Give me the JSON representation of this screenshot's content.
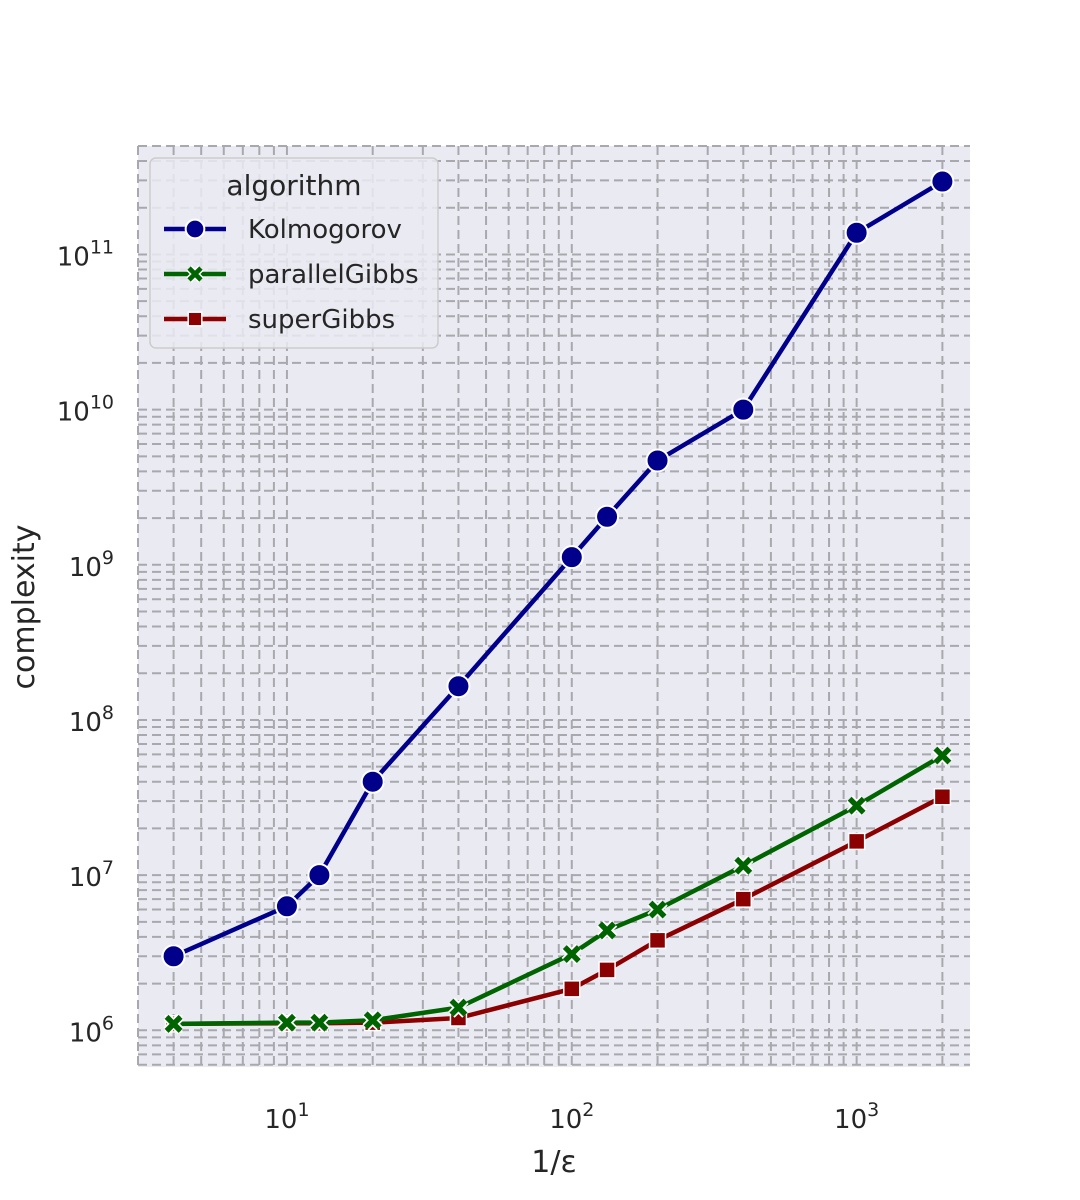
{
  "chart_data": {
    "type": "line",
    "xlabel": "1/ε",
    "ylabel": "complexity",
    "xscale": "log",
    "yscale": "log",
    "xlim": [
      3,
      2500
    ],
    "ylim": [
      580000,
      500000000000
    ],
    "grid": "major and minor, dashed",
    "x_ticks": [
      {
        "value": 10,
        "base": "10",
        "exp": "1"
      },
      {
        "value": 100,
        "base": "10",
        "exp": "2"
      },
      {
        "value": 1000,
        "base": "10",
        "exp": "3"
      }
    ],
    "y_ticks": [
      {
        "value": 1000000,
        "base": "10",
        "exp": "6"
      },
      {
        "value": 10000000,
        "base": "10",
        "exp": "7"
      },
      {
        "value": 100000000,
        "base": "10",
        "exp": "8"
      },
      {
        "value": 1000000000,
        "base": "10",
        "exp": "9"
      },
      {
        "value": 10000000000,
        "base": "10",
        "exp": "10"
      },
      {
        "value": 100000000000,
        "base": "10",
        "exp": "11"
      }
    ],
    "legend": {
      "title": "algorithm",
      "position": "top-left"
    },
    "series": [
      {
        "name": "Kolmogorov",
        "color": "#00008b",
        "marker": "circle",
        "x": [
          4,
          10,
          13,
          20,
          40,
          100,
          133,
          200,
          400,
          1000,
          2000
        ],
        "y": [
          3000000,
          6300000,
          10000000,
          40000000,
          165000000,
          1120000000,
          2040000000,
          4700000000,
          10000000000,
          138000000000,
          295000000000
        ]
      },
      {
        "name": "parallelGibbs",
        "color": "#006400",
        "marker": "x",
        "x": [
          4,
          10,
          13,
          20,
          40,
          100,
          133,
          200,
          400,
          1000,
          2000
        ],
        "y": [
          1100000,
          1120000,
          1120000,
          1160000,
          1400000,
          3100000,
          4400000,
          6000000,
          11500000,
          28000000,
          59000000
        ]
      },
      {
        "name": "superGibbs",
        "color": "#8b0000",
        "marker": "square",
        "x": [
          4,
          10,
          13,
          20,
          40,
          100,
          133,
          200,
          400,
          1000,
          2000
        ],
        "y": [
          1100000,
          1110000,
          1110000,
          1120000,
          1200000,
          1850000,
          2450000,
          3800000,
          7000000,
          16500000,
          32000000
        ]
      }
    ]
  }
}
